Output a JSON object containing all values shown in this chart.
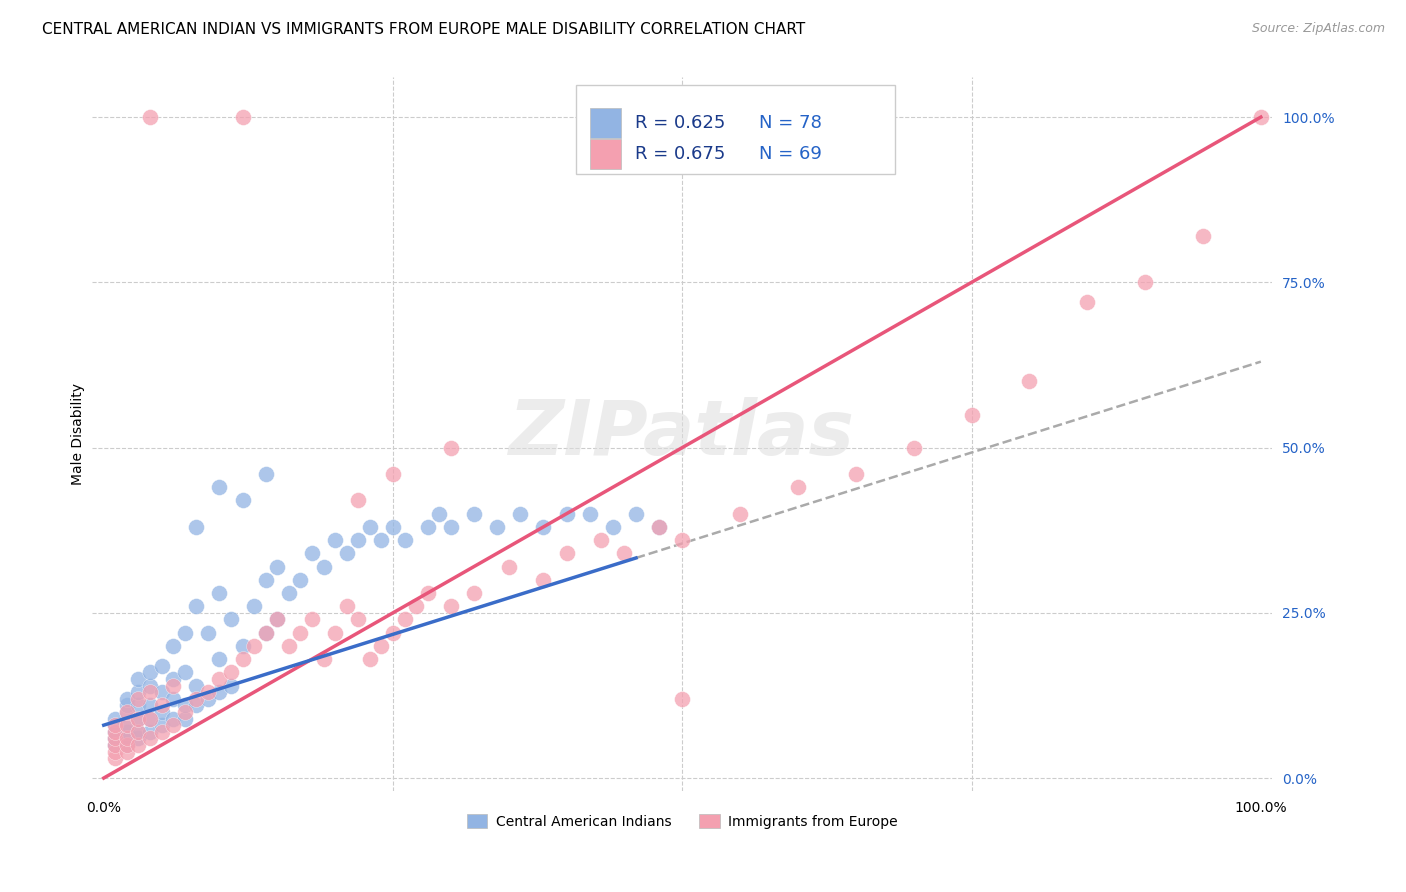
{
  "title": "CENTRAL AMERICAN INDIAN VS IMMIGRANTS FROM EUROPE MALE DISABILITY CORRELATION CHART",
  "source": "Source: ZipAtlas.com",
  "ylabel": "Male Disability",
  "blue_R": 0.625,
  "blue_N": 78,
  "pink_R": 0.675,
  "pink_N": 69,
  "blue_color": "#92b4e3",
  "pink_color": "#f4a0b0",
  "blue_line_color": "#3a6cc8",
  "pink_line_color": "#e8567a",
  "dash_color": "#aaaaaa",
  "blue_label": "Central American Indians",
  "pink_label": "Immigrants from Europe",
  "legend_R_color": "#1a3a8a",
  "legend_N_color": "#2563c7",
  "watermark": "ZIPatlas",
  "title_fontsize": 11,
  "source_fontsize": 9,
  "legend_fontsize": 13,
  "blue_x": [
    0.01,
    0.01,
    0.01,
    0.01,
    0.01,
    0.02,
    0.02,
    0.02,
    0.02,
    0.02,
    0.02,
    0.02,
    0.03,
    0.03,
    0.03,
    0.03,
    0.03,
    0.03,
    0.04,
    0.04,
    0.04,
    0.04,
    0.04,
    0.05,
    0.05,
    0.05,
    0.05,
    0.06,
    0.06,
    0.06,
    0.06,
    0.07,
    0.07,
    0.07,
    0.07,
    0.08,
    0.08,
    0.08,
    0.09,
    0.09,
    0.1,
    0.1,
    0.1,
    0.11,
    0.11,
    0.12,
    0.13,
    0.14,
    0.14,
    0.15,
    0.15,
    0.16,
    0.17,
    0.18,
    0.19,
    0.2,
    0.21,
    0.22,
    0.23,
    0.24,
    0.25,
    0.26,
    0.28,
    0.29,
    0.3,
    0.32,
    0.34,
    0.36,
    0.38,
    0.4,
    0.42,
    0.44,
    0.46,
    0.48,
    0.08,
    0.1,
    0.12,
    0.14
  ],
  "blue_y": [
    0.05,
    0.06,
    0.07,
    0.08,
    0.09,
    0.05,
    0.06,
    0.07,
    0.08,
    0.1,
    0.11,
    0.12,
    0.06,
    0.07,
    0.09,
    0.11,
    0.13,
    0.15,
    0.07,
    0.09,
    0.11,
    0.14,
    0.16,
    0.08,
    0.1,
    0.13,
    0.17,
    0.09,
    0.12,
    0.15,
    0.2,
    0.09,
    0.11,
    0.16,
    0.22,
    0.11,
    0.14,
    0.26,
    0.12,
    0.22,
    0.13,
    0.18,
    0.28,
    0.14,
    0.24,
    0.2,
    0.26,
    0.22,
    0.3,
    0.24,
    0.32,
    0.28,
    0.3,
    0.34,
    0.32,
    0.36,
    0.34,
    0.36,
    0.38,
    0.36,
    0.38,
    0.36,
    0.38,
    0.4,
    0.38,
    0.4,
    0.38,
    0.4,
    0.38,
    0.4,
    0.4,
    0.38,
    0.4,
    0.38,
    0.38,
    0.44,
    0.42,
    0.46
  ],
  "pink_x": [
    0.01,
    0.01,
    0.01,
    0.01,
    0.01,
    0.01,
    0.02,
    0.02,
    0.02,
    0.02,
    0.02,
    0.03,
    0.03,
    0.03,
    0.03,
    0.04,
    0.04,
    0.04,
    0.05,
    0.05,
    0.06,
    0.06,
    0.07,
    0.08,
    0.09,
    0.1,
    0.11,
    0.12,
    0.13,
    0.14,
    0.15,
    0.16,
    0.17,
    0.18,
    0.19,
    0.2,
    0.21,
    0.22,
    0.23,
    0.24,
    0.25,
    0.26,
    0.27,
    0.28,
    0.3,
    0.32,
    0.35,
    0.38,
    0.4,
    0.43,
    0.45,
    0.48,
    0.5,
    0.55,
    0.6,
    0.65,
    0.7,
    0.75,
    0.8,
    0.85,
    0.9,
    0.95,
    1.0,
    0.12,
    0.04,
    0.3,
    0.25,
    0.22,
    0.5
  ],
  "pink_y": [
    0.03,
    0.04,
    0.05,
    0.06,
    0.07,
    0.08,
    0.04,
    0.05,
    0.06,
    0.08,
    0.1,
    0.05,
    0.07,
    0.09,
    0.12,
    0.06,
    0.09,
    0.13,
    0.07,
    0.11,
    0.08,
    0.14,
    0.1,
    0.12,
    0.13,
    0.15,
    0.16,
    0.18,
    0.2,
    0.22,
    0.24,
    0.2,
    0.22,
    0.24,
    0.18,
    0.22,
    0.26,
    0.24,
    0.18,
    0.2,
    0.22,
    0.24,
    0.26,
    0.28,
    0.26,
    0.28,
    0.32,
    0.3,
    0.34,
    0.36,
    0.34,
    0.38,
    0.36,
    0.4,
    0.44,
    0.46,
    0.5,
    0.55,
    0.6,
    0.72,
    0.75,
    0.82,
    1.0,
    1.0,
    1.0,
    0.5,
    0.46,
    0.42,
    0.12
  ]
}
